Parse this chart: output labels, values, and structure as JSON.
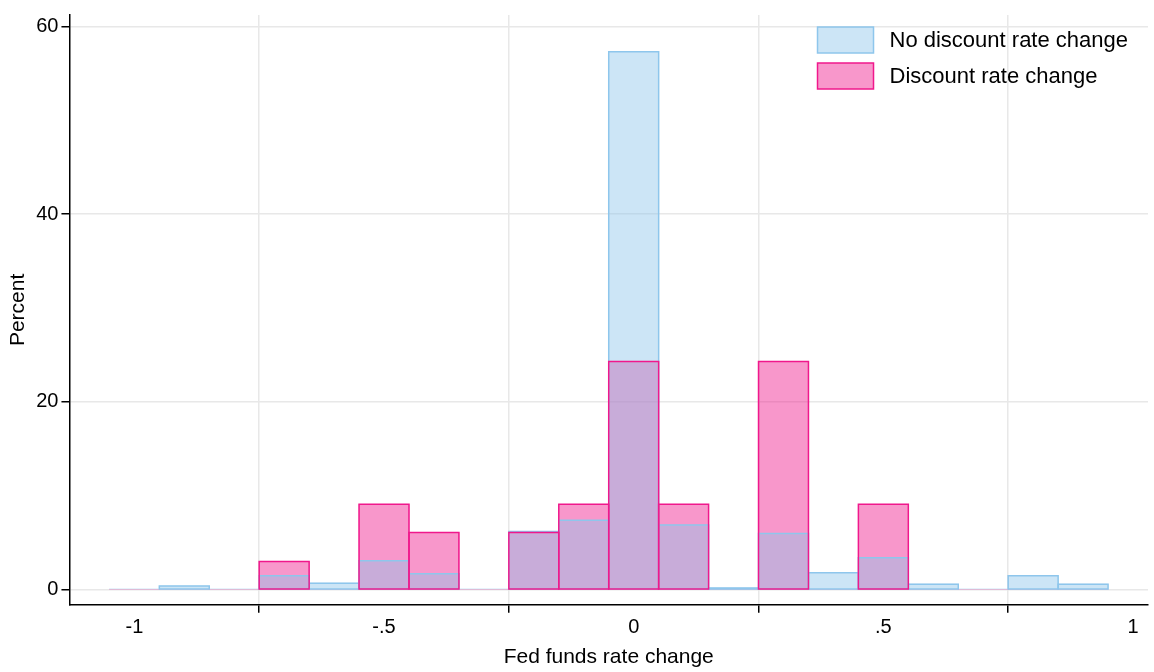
{
  "chart_data": {
    "type": "histogram",
    "xlabel": "Fed funds rate change",
    "ylabel": "Percent",
    "bins": [
      -1.05,
      -0.95,
      -0.85,
      -0.75,
      -0.65,
      -0.55,
      -0.45,
      -0.35,
      -0.25,
      -0.15,
      -0.05,
      0.05,
      0.15,
      0.25,
      0.35,
      0.45,
      0.55,
      0.65,
      0.75,
      0.85,
      0.95
    ],
    "series": [
      {
        "name": "No discount rate change",
        "color": "#8ec6ec",
        "values": [
          0.1,
          0.4,
          0.1,
          1.5,
          0.7,
          3.1,
          1.7,
          0.1,
          6.2,
          7.4,
          57.3,
          6.9,
          0.2,
          6.0,
          1.8,
          3.4,
          0.6,
          0.1,
          1.5,
          0.6
        ]
      },
      {
        "name": "Discount rate change",
        "color": "#f0188c",
        "values": [
          0,
          0,
          0,
          3.0,
          0,
          9.1,
          6.1,
          0,
          6.1,
          9.1,
          24.3,
          9.1,
          0,
          24.3,
          0,
          9.1,
          0,
          0,
          0,
          0
        ]
      }
    ],
    "xlim": [
      -1.13,
      1.03
    ],
    "xticks": [
      {
        "value": -1,
        "label": "-1"
      },
      {
        "value": -0.5,
        "label": "-.5"
      },
      0,
      {
        "value": 0.5,
        "label": ".5"
      },
      1
    ],
    "ylim": [
      -1.6,
      61.2
    ],
    "yticks": [
      0,
      20,
      40,
      60
    ],
    "grid": true,
    "legend": "top right"
  }
}
